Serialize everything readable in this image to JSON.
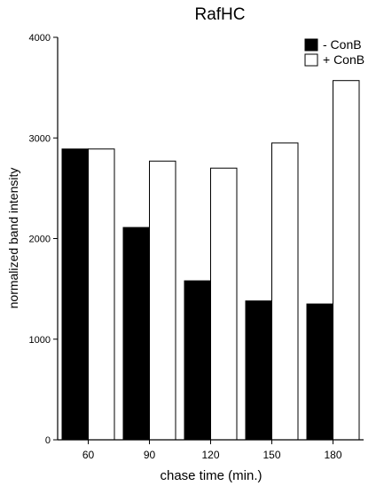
{
  "chart_data": {
    "type": "bar",
    "title": "RafHC",
    "xlabel": "chase time (min.)",
    "ylabel": "normalized band intensity",
    "categories": [
      "60",
      "90",
      "120",
      "150",
      "180"
    ],
    "series": [
      {
        "name": "- ConB",
        "values": [
          2890,
          2110,
          1580,
          1380,
          1350
        ],
        "color": "#000000"
      },
      {
        "name": "+ ConB",
        "values": [
          2890,
          2770,
          2700,
          2950,
          3570
        ],
        "color": "#ffffff"
      }
    ],
    "ylim": [
      0,
      4000
    ],
    "yticks": [
      0,
      1000,
      2000,
      3000,
      4000
    ],
    "grid": false,
    "legend": "top-right"
  }
}
